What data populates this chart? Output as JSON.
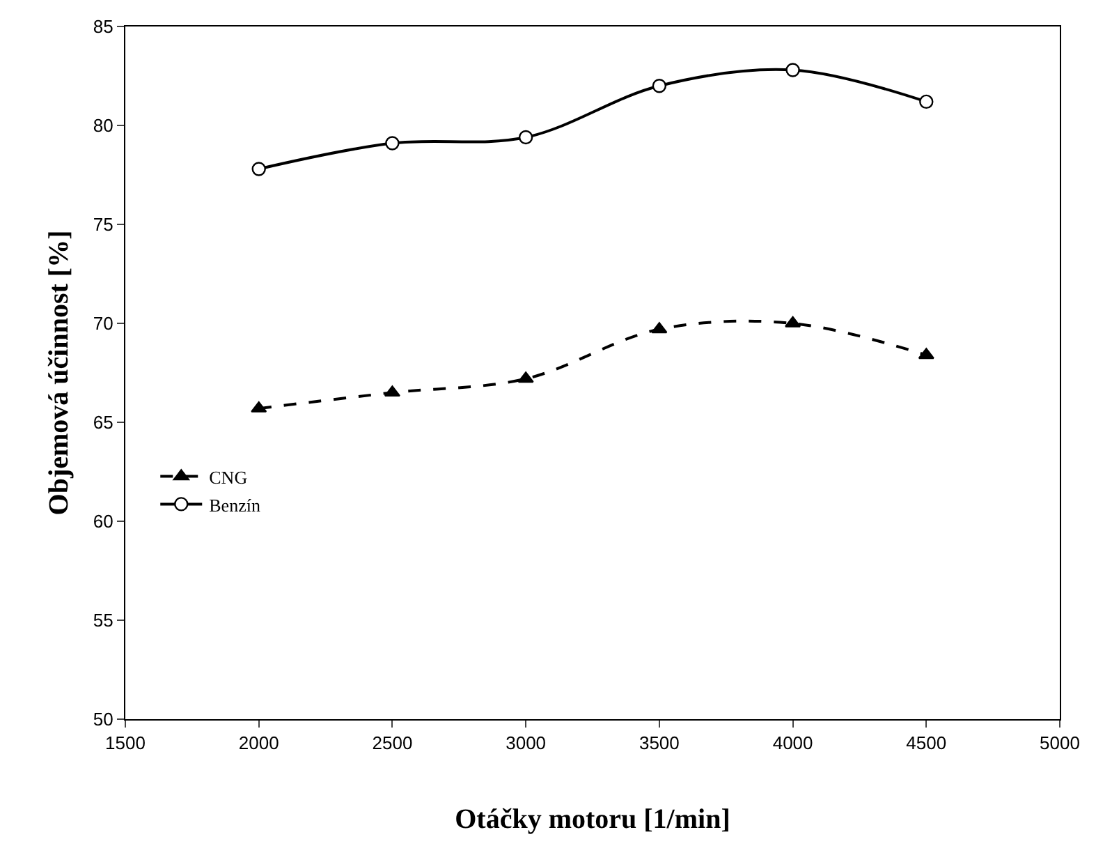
{
  "chart_data": {
    "type": "line",
    "xlabel": "Otáčky motoru [1/min]",
    "ylabel": "Objemová účinnost [%]",
    "x": [
      2000,
      2500,
      3000,
      3500,
      4000,
      4500
    ],
    "series": [
      {
        "name": "CNG",
        "color": "#000000",
        "values": [
          65.7,
          66.5,
          67.2,
          69.7,
          70.0,
          68.4
        ],
        "marker": "triangle",
        "line_style": "dashed"
      },
      {
        "name": "Benzín",
        "color": "#000000",
        "values": [
          77.8,
          79.1,
          79.4,
          82.0,
          82.8,
          81.2
        ],
        "marker": "circle",
        "line_style": "solid"
      }
    ],
    "xlim": [
      1500,
      5000
    ],
    "xticks": [
      1500,
      2000,
      2500,
      3000,
      3500,
      4000,
      4500,
      5000
    ],
    "ylim": [
      50,
      85
    ],
    "yticks": [
      50,
      55,
      60,
      65,
      70,
      75,
      80,
      85
    ],
    "legend": "bottom left"
  }
}
